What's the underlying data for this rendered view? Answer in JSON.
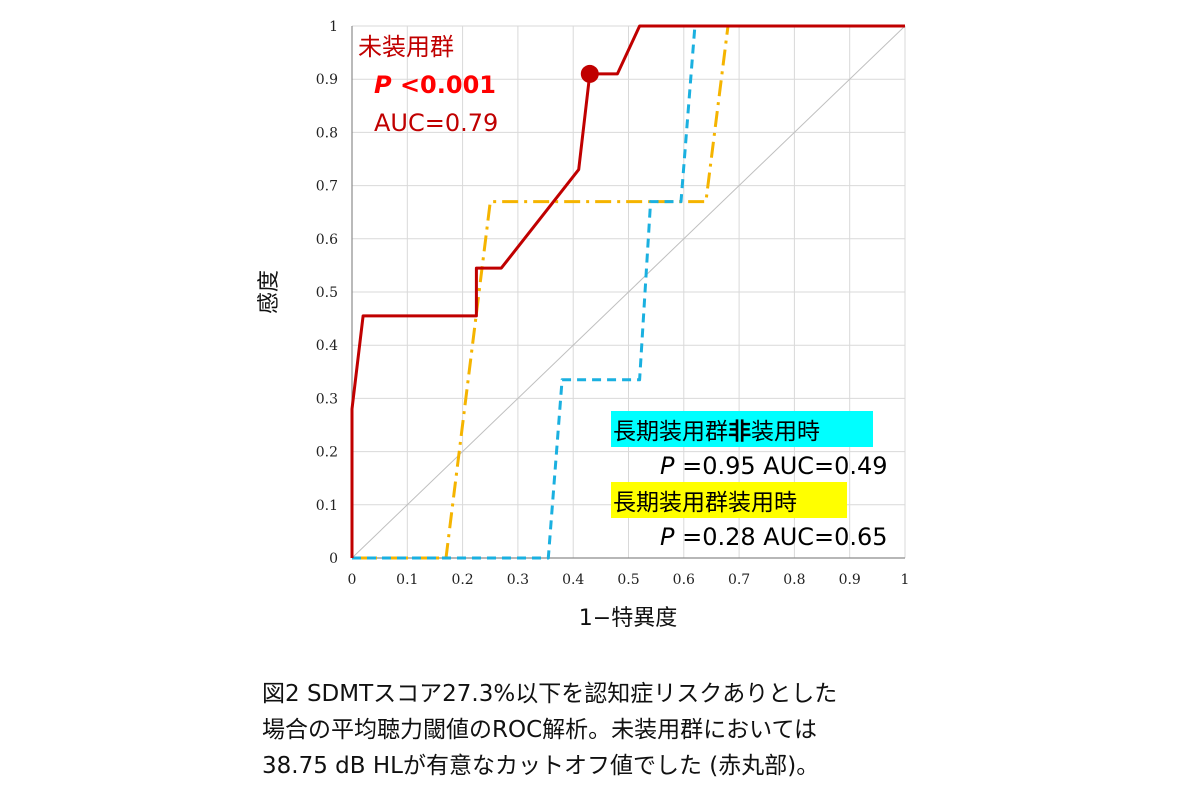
{
  "chart_data": {
    "type": "line",
    "xlabel": "1−特異度",
    "ylabel": "感度",
    "xlim": [
      0,
      1
    ],
    "ylim": [
      0,
      1
    ],
    "x_ticks": [
      "0",
      "0.1",
      "0.2",
      "0.3",
      "0.4",
      "0.5",
      "0.6",
      "0.7",
      "0.8",
      "0.9",
      "1"
    ],
    "y_ticks": [
      "0",
      "0.1",
      "0.2",
      "0.3",
      "0.4",
      "0.5",
      "0.6",
      "0.7",
      "0.8",
      "0.9",
      "1"
    ],
    "grid": true,
    "reference_line": [
      [
        0,
        0
      ],
      [
        1,
        1
      ]
    ],
    "series": [
      {
        "name": "未装用群",
        "color": "#c00000",
        "style": "solid",
        "points": [
          [
            0,
            0
          ],
          [
            0,
            0.28
          ],
          [
            0.02,
            0.455
          ],
          [
            0.225,
            0.455
          ],
          [
            0.225,
            0.545
          ],
          [
            0.27,
            0.545
          ],
          [
            0.41,
            0.73
          ],
          [
            0.43,
            0.91
          ],
          [
            0.48,
            0.91
          ],
          [
            0.52,
            1.0
          ],
          [
            1.0,
            1.0
          ]
        ]
      },
      {
        "name": "長期装用群非装用時",
        "color": "#1ab0e0",
        "style": "dashed",
        "points": [
          [
            0,
            0
          ],
          [
            0.355,
            0
          ],
          [
            0.38,
            0.335
          ],
          [
            0.52,
            0.335
          ],
          [
            0.54,
            0.67
          ],
          [
            0.595,
            0.67
          ],
          [
            0.62,
            1.0
          ],
          [
            1.0,
            1.0
          ]
        ]
      },
      {
        "name": "長期装用群装用時",
        "color": "#f5b400",
        "style": "dashdot",
        "points": [
          [
            0,
            0
          ],
          [
            0.17,
            0
          ],
          [
            0.25,
            0.67
          ],
          [
            0.64,
            0.67
          ],
          [
            0.68,
            1.0
          ],
          [
            1.0,
            1.0
          ]
        ]
      }
    ],
    "cutoff_point": {
      "x": 0.43,
      "y": 0.91,
      "color": "#c00000"
    },
    "annotations": {
      "unworn_label": "未装用群",
      "unworn_p_italic": "P",
      "unworn_p_value": " <0.001",
      "unworn_auc": "AUC=0.79",
      "nonwear_label_a": "長期装用群",
      "nonwear_label_bold": "非",
      "nonwear_label_b": "装用時",
      "nonwear_highlight": "#00ffff",
      "nonwear_p_italic": "P",
      "nonwear_stats": " =0.95 AUC=0.49",
      "wear_label": "長期装用群装用時",
      "wear_highlight": "#ffff00",
      "wear_p_italic": "P",
      "wear_stats": " =0.28 AUC=0.65"
    }
  },
  "caption": {
    "line1": "図2 SDMTスコア27.3%以下を認知症リスクありとした",
    "line2": "場合の平均聴力閾値のROC解析。未装用群においては",
    "line3": "38.75 dB HLが有意なカットオフ値でした (赤丸部)。"
  }
}
